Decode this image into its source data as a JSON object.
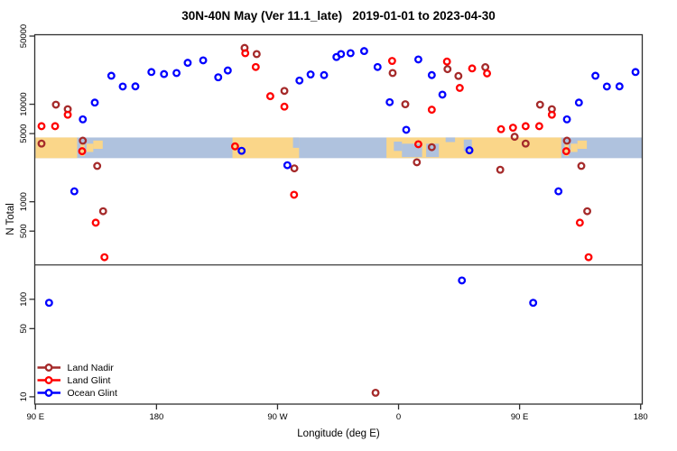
{
  "chart_data": {
    "type": "scatter",
    "title": "30N-40N May (Ver 11.1_late)   2019-01-01 to 2023-04-30",
    "xlabel": "Longitude (deg E)",
    "ylabel": "N Total",
    "x_axis": {
      "description": "longitude axis starting at 90E going eastward for 450 degrees (90E..180..90W..0..90E..180); points with lon in [90E,180E] are drawn twice",
      "span_deg": 450,
      "ticks": [
        {
          "t": 0,
          "label": "90 E"
        },
        {
          "t": 90,
          "label": "180"
        },
        {
          "t": 180,
          "label": "90 W"
        },
        {
          "t": 270,
          "label": "0"
        },
        {
          "t": 360,
          "label": "90 E"
        },
        {
          "t": 450,
          "label": "180"
        }
      ]
    },
    "y_axis": {
      "scale": "log",
      "tick_values": [
        50000,
        10000,
        5000,
        1000,
        500,
        100,
        50,
        10
      ],
      "range": [
        8.5,
        52000
      ]
    },
    "threshold_line_n": 225,
    "map_band": {
      "description": "30N-40N world-map strip drawn across the plot",
      "n_top": 4560,
      "n_bottom": 2800,
      "land_color": "#FAD689",
      "ocean_color": "#AFC2DE",
      "land_segments_t": [
        [
          0,
          31
        ],
        [
          146.5,
          196
        ],
        [
          261,
          391
        ]
      ],
      "ocean_patches": [
        {
          "name": "atlantic-notch",
          "t": [
            191.5,
            196
          ],
          "f": [
            0,
            0.5
          ]
        },
        {
          "name": "west-mediterranean",
          "t": [
            266.5,
            272.5
          ],
          "f": [
            0.2,
            0.65
          ]
        },
        {
          "name": "mediterranean",
          "t": [
            272.5,
            300
          ],
          "f": [
            0.3,
            0.95
          ]
        },
        {
          "name": "black-sea",
          "t": [
            305,
            312
          ],
          "f": [
            0,
            0.22
          ]
        },
        {
          "name": "caspian-sea",
          "t": [
            318.5,
            324.5
          ],
          "f": [
            0.1,
            0.65
          ]
        }
      ],
      "land_patches": [
        {
          "name": "korea",
          "t": [
            33.5,
            36.5
          ],
          "f": [
            0.25,
            0.9
          ]
        },
        {
          "name": "japan-west",
          "t": [
            38,
            43
          ],
          "f": [
            0.3,
            0.7
          ]
        },
        {
          "name": "japan-east",
          "t": [
            43,
            50
          ],
          "f": [
            0.15,
            0.55
          ]
        },
        {
          "name": "italy",
          "t": [
            287.5,
            290.5
          ],
          "f": [
            0.3,
            0.95
          ]
        },
        {
          "name": "korea-2",
          "t": [
            393.5,
            396.5
          ],
          "f": [
            0.25,
            0.9
          ]
        },
        {
          "name": "japan-west-2",
          "t": [
            398,
            403
          ],
          "f": [
            0.3,
            0.7
          ]
        },
        {
          "name": "japan-east-2",
          "t": [
            403,
            410
          ],
          "f": [
            0.15,
            0.55
          ]
        }
      ]
    },
    "legend": {
      "items": [
        {
          "label": "Land Nadir",
          "color": "#A52A2A"
        },
        {
          "label": "Land Glint",
          "color": "#FF0000"
        },
        {
          "label": "Ocean Glint",
          "color": "#0000FF"
        }
      ]
    },
    "series": [
      {
        "name": "Land Nadir",
        "color": "#A52A2A",
        "points": [
          {
            "lon": 94.5,
            "n": 3950
          },
          {
            "lon": 105.2,
            "n": 9900
          },
          {
            "lon": 114.0,
            "n": 8900
          },
          {
            "lon": 125.2,
            "n": 4230
          },
          {
            "lon": 135.9,
            "n": 2330
          },
          {
            "lon": 140.3,
            "n": 800
          },
          {
            "lon": -114.5,
            "n": 37800
          },
          {
            "lon": -105.5,
            "n": 32700
          },
          {
            "lon": -84.9,
            "n": 13700
          },
          {
            "lon": -77.5,
            "n": 2200
          },
          {
            "lon": -17.1,
            "n": 11
          },
          {
            "lon": -4.4,
            "n": 20900
          },
          {
            "lon": 5.0,
            "n": 10000
          },
          {
            "lon": 13.6,
            "n": 2540
          },
          {
            "lon": 24.7,
            "n": 3630
          },
          {
            "lon": 36.4,
            "n": 22900
          },
          {
            "lon": 44.5,
            "n": 19500
          },
          {
            "lon": 64.5,
            "n": 24000
          },
          {
            "lon": 75.6,
            "n": 2130
          },
          {
            "lon": 86.3,
            "n": 4640
          }
        ]
      },
      {
        "name": "Land Glint",
        "color": "#FF0000",
        "points": [
          {
            "lon": 94.5,
            "n": 5960
          },
          {
            "lon": 104.6,
            "n": 5960
          },
          {
            "lon": 114.0,
            "n": 7810
          },
          {
            "lon": 124.7,
            "n": 3300
          },
          {
            "lon": 134.8,
            "n": 610
          },
          {
            "lon": 141.3,
            "n": 270
          },
          {
            "lon": -121.6,
            "n": 3700
          },
          {
            "lon": -114.0,
            "n": 33400
          },
          {
            "lon": -106.2,
            "n": 24100
          },
          {
            "lon": -95.4,
            "n": 12100
          },
          {
            "lon": -84.9,
            "n": 9450
          },
          {
            "lon": -77.7,
            "n": 1180
          },
          {
            "lon": -4.8,
            "n": 27800
          },
          {
            "lon": 14.7,
            "n": 3890
          },
          {
            "lon": 24.7,
            "n": 8790
          },
          {
            "lon": 36.0,
            "n": 27400
          },
          {
            "lon": 45.5,
            "n": 14700
          },
          {
            "lon": 54.7,
            "n": 23300
          },
          {
            "lon": 65.8,
            "n": 20700
          },
          {
            "lon": 76.2,
            "n": 5550
          },
          {
            "lon": 85.1,
            "n": 5750
          }
        ]
      },
      {
        "name": "Ocean Glint",
        "color": "#0000FF",
        "points": [
          {
            "lon": 100.1,
            "n": 92
          },
          {
            "lon": 118.9,
            "n": 1280
          },
          {
            "lon": 125.2,
            "n": 7000
          },
          {
            "lon": 134.1,
            "n": 10400
          },
          {
            "lon": 146.4,
            "n": 19600
          },
          {
            "lon": 154.9,
            "n": 15200
          },
          {
            "lon": 164.3,
            "n": 15250
          },
          {
            "lon": 176.2,
            "n": 21400
          },
          {
            "lon": -174.4,
            "n": 20400
          },
          {
            "lon": -165.1,
            "n": 20900
          },
          {
            "lon": -156.8,
            "n": 26600
          },
          {
            "lon": -145.3,
            "n": 28200
          },
          {
            "lon": -134.1,
            "n": 18900
          },
          {
            "lon": -127.0,
            "n": 22200
          },
          {
            "lon": -116.7,
            "n": 3330
          },
          {
            "lon": -82.7,
            "n": 2370
          },
          {
            "lon": -73.7,
            "n": 17500
          },
          {
            "lon": -65.4,
            "n": 20200
          },
          {
            "lon": -55.4,
            "n": 19900
          },
          {
            "lon": -46.2,
            "n": 30500
          },
          {
            "lon": -42.8,
            "n": 32700
          },
          {
            "lon": -35.7,
            "n": 33400
          },
          {
            "lon": -25.6,
            "n": 35100
          },
          {
            "lon": -15.6,
            "n": 24100
          },
          {
            "lon": -6.6,
            "n": 10500
          },
          {
            "lon": 5.7,
            "n": 5470
          },
          {
            "lon": 14.7,
            "n": 28800
          },
          {
            "lon": 24.7,
            "n": 19900
          },
          {
            "lon": 32.6,
            "n": 12550
          },
          {
            "lon": 47.1,
            "n": 156
          },
          {
            "lon": 52.7,
            "n": 3370
          }
        ]
      }
    ],
    "colors": {
      "box": "#303030",
      "threshold_line": "#4d4d4d",
      "text": "#000000"
    }
  }
}
